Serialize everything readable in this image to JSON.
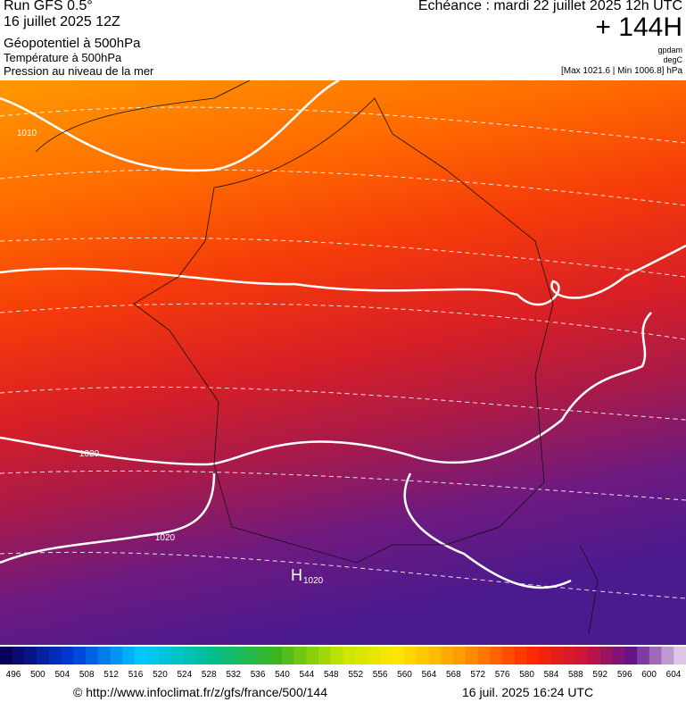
{
  "header": {
    "run": "Run GFS 0.5°",
    "date": "16 juillet 2025 12Z",
    "layers": [
      "Géopotentiel à 500hPa",
      "Température à 500hPa",
      "Pression au niveau de la mer"
    ],
    "echeance": "Echéance : mardi 22 juillet 2025 12h UTC",
    "lead": "+ 144H",
    "units": [
      "gpdam",
      "degC",
      "[Max 1021.6 | Min 1006.8] hPa"
    ]
  },
  "map": {
    "isobar_labels": [
      "1010",
      "1020",
      "1020"
    ],
    "high": {
      "symbol": "H",
      "value": "1020"
    }
  },
  "colorbar": {
    "labels": [
      496,
      500,
      504,
      508,
      512,
      516,
      520,
      524,
      528,
      532,
      536,
      540,
      544,
      548,
      552,
      556,
      560,
      564,
      568,
      572,
      576,
      580,
      584,
      588,
      592,
      596,
      600,
      604
    ]
  },
  "footer": {
    "url": "© http://www.infoclimat.fr/z/gfs/france/500/144",
    "timestamp": "16 juil. 2025 16:24 UTC"
  }
}
